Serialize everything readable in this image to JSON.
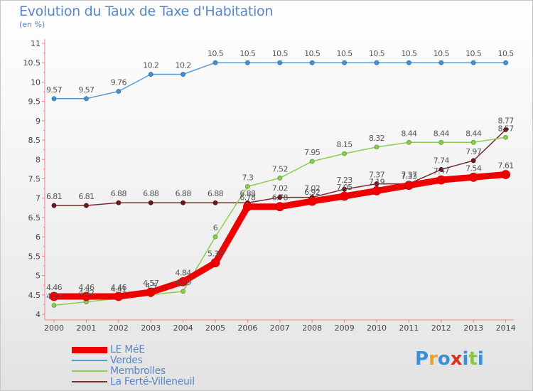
{
  "title": "Evolution du Taux de Taxe d'Habitation",
  "subtitle": "(en %)",
  "logo": {
    "text": "Proxiti",
    "letters": [
      {
        "ch": "P",
        "color": "#3b8fd6"
      },
      {
        "ch": "r",
        "color": "#f0a020"
      },
      {
        "ch": "o",
        "color": "#3b8fd6"
      },
      {
        "ch": "x",
        "color": "#e03020"
      },
      {
        "ch": "i",
        "color": "#3b8fd6"
      },
      {
        "ch": "t",
        "color": "#8cc63f"
      },
      {
        "ch": "i",
        "color": "#3b8fd6"
      }
    ]
  },
  "chart_data": {
    "type": "line",
    "title": "Evolution du Taux de Taxe d'Habitation",
    "subtitle": "(en %)",
    "x": [
      "2000",
      "2001",
      "2002",
      "2003",
      "2004",
      "2005",
      "2006",
      "2007",
      "2008",
      "2009",
      "2010",
      "2011",
      "2012",
      "2013",
      "2014"
    ],
    "ylim": [
      4,
      11
    ],
    "yticks": [
      "4",
      "4.5",
      "5",
      "5.5",
      "6",
      "6.5",
      "7",
      "7.5",
      "8",
      "8.5",
      "9",
      "9.5",
      "10",
      "10.5",
      "11"
    ],
    "grid": false,
    "legend_position": "bottom-left",
    "series": [
      {
        "name": "LE MéE",
        "color": "#ee0000",
        "values": [
          4.46,
          4.46,
          4.46,
          4.57,
          4.84,
          5.33,
          6.78,
          6.78,
          6.92,
          7.05,
          7.19,
          7.33,
          7.47,
          7.54,
          7.61
        ],
        "labels": [
          "4.46",
          "4.46",
          "4.46",
          "4.57",
          "4.84",
          "5.33",
          "6.78",
          "6.78",
          "6.92",
          "7.05",
          "7.19",
          "7.33",
          "7.47",
          "7.54",
          "7.61"
        ]
      },
      {
        "name": "Verdes",
        "color": "#5b9bd5",
        "values": [
          9.57,
          9.57,
          9.76,
          10.2,
          10.2,
          10.5,
          10.5,
          10.5,
          10.5,
          10.5,
          10.5,
          10.5,
          10.5,
          10.5,
          10.5
        ],
        "labels": [
          "9.57",
          "9.57",
          "9.76",
          "10.2",
          "10.2",
          "10.5",
          "10.5",
          "10.5",
          "10.5",
          "10.5",
          "10.5",
          "10.5",
          "10.5",
          "10.5",
          "10.5"
        ]
      },
      {
        "name": "Membrolles",
        "color": "#8ccc50",
        "values": [
          4.23,
          4.32,
          4.41,
          4.5,
          4.59,
          6,
          7.3,
          7.52,
          7.95,
          8.15,
          8.32,
          8.44,
          8.44,
          8.44,
          8.57
        ],
        "labels": [
          "4.23",
          "4.32",
          "4.41",
          "4.5",
          "4.59",
          "6",
          "7.3",
          "7.52",
          "7.95",
          "8.15",
          "8.32",
          "8.44",
          "8.44",
          "8.44",
          "8.57"
        ]
      },
      {
        "name": "La Ferté-Villeneuil",
        "color": "#7a2a30",
        "values": [
          6.81,
          6.81,
          6.88,
          6.88,
          6.88,
          6.88,
          6.88,
          7.02,
          7.02,
          7.23,
          7.37,
          7.37,
          7.74,
          7.97,
          8.77
        ],
        "labels": [
          "6.81",
          "6.81",
          "6.88",
          "6.88",
          "6.88",
          "6.88",
          "6.88",
          "7.02",
          "7.02",
          "7.23",
          "7.37",
          "7.37",
          "7.74",
          "7.97",
          "8.77"
        ]
      }
    ]
  }
}
